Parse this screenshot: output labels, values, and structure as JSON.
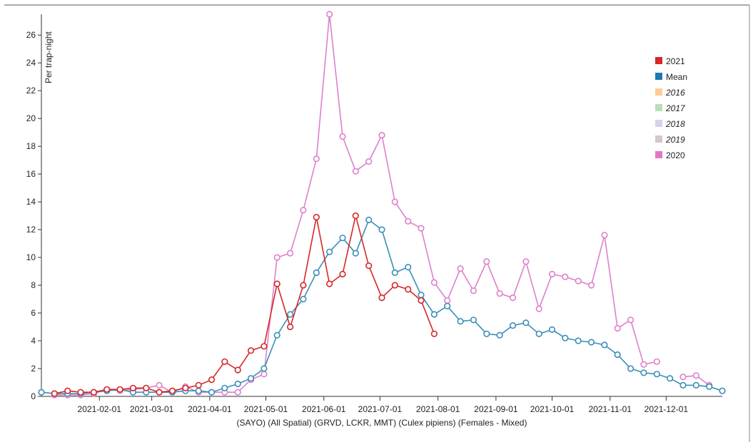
{
  "chart_data": {
    "type": "line",
    "ylabel": "Per trap-night",
    "xlabel": "(SAYO) (All Spatial) (GRVD, LCKR, MMT) (Culex pipiens) (Females - Mixed)",
    "ylim": [
      0,
      27.5
    ],
    "yticks": [
      0,
      2,
      4,
      6,
      8,
      10,
      12,
      14,
      16,
      18,
      20,
      22,
      24,
      26
    ],
    "xlim": [
      "2021-01-01",
      "2021-12-31"
    ],
    "xticks": [
      "2021-02-01",
      "2021-03-01",
      "2021-04-01",
      "2021-05-01",
      "2021-06-01",
      "2021-07-01",
      "2021-08-01",
      "2021-09-01",
      "2021-10-01",
      "2021-11-01",
      "2021-12-01"
    ],
    "xtick_labels": [
      "2021-02-01",
      "2021-03-01",
      "2021-04-01",
      "2021-05-01",
      "2021-06-01",
      "2021-07-01",
      "2021-08-01",
      "2021-09-01",
      "2021-10-01",
      "2021-11-01",
      "2021-12-01"
    ],
    "legend_position": "top-right",
    "grid": false,
    "legend": [
      {
        "name": "2021",
        "color": "#d62728",
        "italic": false
      },
      {
        "name": "Mean",
        "color": "#1f77b4",
        "italic": false
      },
      {
        "name": "2016",
        "color": "#ffcc99",
        "italic": true
      },
      {
        "name": "2017",
        "color": "#b8e0b8",
        "italic": true
      },
      {
        "name": "2018",
        "color": "#d8d0ee",
        "italic": true
      },
      {
        "name": "2019",
        "color": "#d4c8c8",
        "italic": true
      },
      {
        "name": "2020",
        "color": "#e377c2",
        "italic": false
      }
    ],
    "series": [
      {
        "name": "2020",
        "color": "#dd80cc",
        "points": [
          [
            "2021-01-08",
            0.1
          ],
          [
            "2021-01-15",
            0.1
          ],
          [
            "2021-01-22",
            0.1
          ],
          [
            "2021-01-29",
            0.2
          ],
          [
            "2021-02-05",
            0.5
          ],
          [
            "2021-02-12",
            0.4
          ],
          [
            "2021-02-19",
            0.5
          ],
          [
            "2021-02-26",
            0.6
          ],
          [
            "2021-03-05",
            0.8
          ],
          [
            "2021-03-12",
            0.3
          ],
          [
            "2021-03-19",
            0.7
          ],
          [
            "2021-03-26",
            0.3
          ],
          [
            "2021-04-02",
            0.3
          ],
          [
            "2021-04-09",
            0.3
          ],
          [
            "2021-04-16",
            0.3
          ],
          [
            "2021-04-23",
            1.2
          ],
          [
            "2021-04-30",
            1.6
          ],
          [
            "2021-05-07",
            10.0
          ],
          [
            "2021-05-14",
            10.3
          ],
          [
            "2021-05-21",
            13.4
          ],
          [
            "2021-05-28",
            17.1
          ],
          [
            "2021-06-04",
            27.5
          ],
          [
            "2021-06-11",
            18.7
          ],
          [
            "2021-06-18",
            16.2
          ],
          [
            "2021-06-25",
            16.9
          ],
          [
            "2021-07-02",
            18.8
          ],
          [
            "2021-07-09",
            14.0
          ],
          [
            "2021-07-16",
            12.6
          ],
          [
            "2021-07-23",
            12.1
          ],
          [
            "2021-07-30",
            8.2
          ],
          [
            "2021-08-06",
            6.9
          ],
          [
            "2021-08-13",
            9.2
          ],
          [
            "2021-08-20",
            7.6
          ],
          [
            "2021-08-27",
            9.7
          ],
          [
            "2021-09-03",
            7.4
          ],
          [
            "2021-09-10",
            7.1
          ],
          [
            "2021-09-17",
            9.7
          ],
          [
            "2021-09-24",
            6.3
          ],
          [
            "2021-10-01",
            8.8
          ],
          [
            "2021-10-08",
            8.6
          ],
          [
            "2021-10-15",
            8.3
          ],
          [
            "2021-10-22",
            8.0
          ],
          [
            "2021-10-29",
            11.6
          ],
          [
            "2021-11-05",
            4.9
          ],
          [
            "2021-11-12",
            5.5
          ],
          [
            "2021-11-19",
            2.3
          ],
          [
            "2021-11-26",
            2.5
          ],
          null,
          [
            "2021-12-10",
            1.4
          ],
          [
            "2021-12-17",
            1.5
          ],
          [
            "2021-12-24",
            0.8
          ]
        ]
      },
      {
        "name": "Mean",
        "color": "#3a8fb7",
        "points": [
          [
            "2021-01-01",
            0.3
          ],
          [
            "2021-01-08",
            0.2
          ],
          [
            "2021-01-15",
            0.2
          ],
          [
            "2021-01-22",
            0.2
          ],
          [
            "2021-01-29",
            0.3
          ],
          [
            "2021-02-05",
            0.4
          ],
          [
            "2021-02-12",
            0.5
          ],
          [
            "2021-02-19",
            0.3
          ],
          [
            "2021-02-26",
            0.3
          ],
          [
            "2021-03-05",
            0.3
          ],
          [
            "2021-03-12",
            0.3
          ],
          [
            "2021-03-19",
            0.4
          ],
          [
            "2021-03-26",
            0.4
          ],
          [
            "2021-04-02",
            0.3
          ],
          [
            "2021-04-09",
            0.6
          ],
          [
            "2021-04-16",
            0.9
          ],
          [
            "2021-04-23",
            1.3
          ],
          [
            "2021-04-30",
            2.0
          ],
          [
            "2021-05-07",
            4.4
          ],
          [
            "2021-05-14",
            5.9
          ],
          [
            "2021-05-21",
            7.0
          ],
          [
            "2021-05-28",
            8.9
          ],
          [
            "2021-06-04",
            10.4
          ],
          [
            "2021-06-11",
            11.4
          ],
          [
            "2021-06-18",
            10.3
          ],
          [
            "2021-06-25",
            12.7
          ],
          [
            "2021-07-02",
            12.0
          ],
          [
            "2021-07-09",
            8.9
          ],
          [
            "2021-07-16",
            9.3
          ],
          [
            "2021-07-23",
            7.3
          ],
          [
            "2021-07-30",
            5.9
          ],
          [
            "2021-08-06",
            6.5
          ],
          [
            "2021-08-13",
            5.4
          ],
          [
            "2021-08-20",
            5.5
          ],
          [
            "2021-08-27",
            4.5
          ],
          [
            "2021-09-03",
            4.4
          ],
          [
            "2021-09-10",
            5.1
          ],
          [
            "2021-09-17",
            5.3
          ],
          [
            "2021-09-24",
            4.5
          ],
          [
            "2021-10-01",
            4.8
          ],
          [
            "2021-10-08",
            4.2
          ],
          [
            "2021-10-15",
            4.0
          ],
          [
            "2021-10-22",
            3.9
          ],
          [
            "2021-10-29",
            3.7
          ],
          [
            "2021-11-05",
            3.0
          ],
          [
            "2021-11-12",
            2.0
          ],
          [
            "2021-11-19",
            1.7
          ],
          [
            "2021-11-26",
            1.6
          ],
          [
            "2021-12-03",
            1.3
          ],
          [
            "2021-12-10",
            0.8
          ],
          [
            "2021-12-17",
            0.8
          ],
          [
            "2021-12-24",
            0.7
          ],
          [
            "2021-12-31",
            0.4
          ]
        ]
      },
      {
        "name": "2021",
        "color": "#d62728",
        "points": [
          [
            "2021-01-08",
            0.2
          ],
          [
            "2021-01-15",
            0.4
          ],
          [
            "2021-01-22",
            0.3
          ],
          [
            "2021-01-29",
            0.3
          ],
          [
            "2021-02-05",
            0.5
          ],
          [
            "2021-02-12",
            0.5
          ],
          [
            "2021-02-19",
            0.6
          ],
          [
            "2021-02-26",
            0.6
          ],
          [
            "2021-03-05",
            0.3
          ],
          [
            "2021-03-12",
            0.4
          ],
          [
            "2021-03-19",
            0.6
          ],
          [
            "2021-03-26",
            0.8
          ],
          [
            "2021-04-02",
            1.2
          ],
          [
            "2021-04-09",
            2.5
          ],
          [
            "2021-04-16",
            1.9
          ],
          [
            "2021-04-23",
            3.3
          ],
          [
            "2021-04-30",
            3.6
          ],
          [
            "2021-05-07",
            8.1
          ],
          [
            "2021-05-14",
            5.0
          ],
          [
            "2021-05-21",
            8.0
          ],
          [
            "2021-05-28",
            12.9
          ],
          [
            "2021-06-04",
            8.1
          ],
          [
            "2021-06-11",
            8.8
          ],
          [
            "2021-06-18",
            13.0
          ],
          [
            "2021-06-25",
            9.4
          ],
          [
            "2021-07-02",
            7.1
          ],
          [
            "2021-07-09",
            8.0
          ],
          [
            "2021-07-16",
            7.7
          ],
          [
            "2021-07-23",
            6.9
          ],
          [
            "2021-07-30",
            4.5
          ]
        ]
      }
    ]
  }
}
